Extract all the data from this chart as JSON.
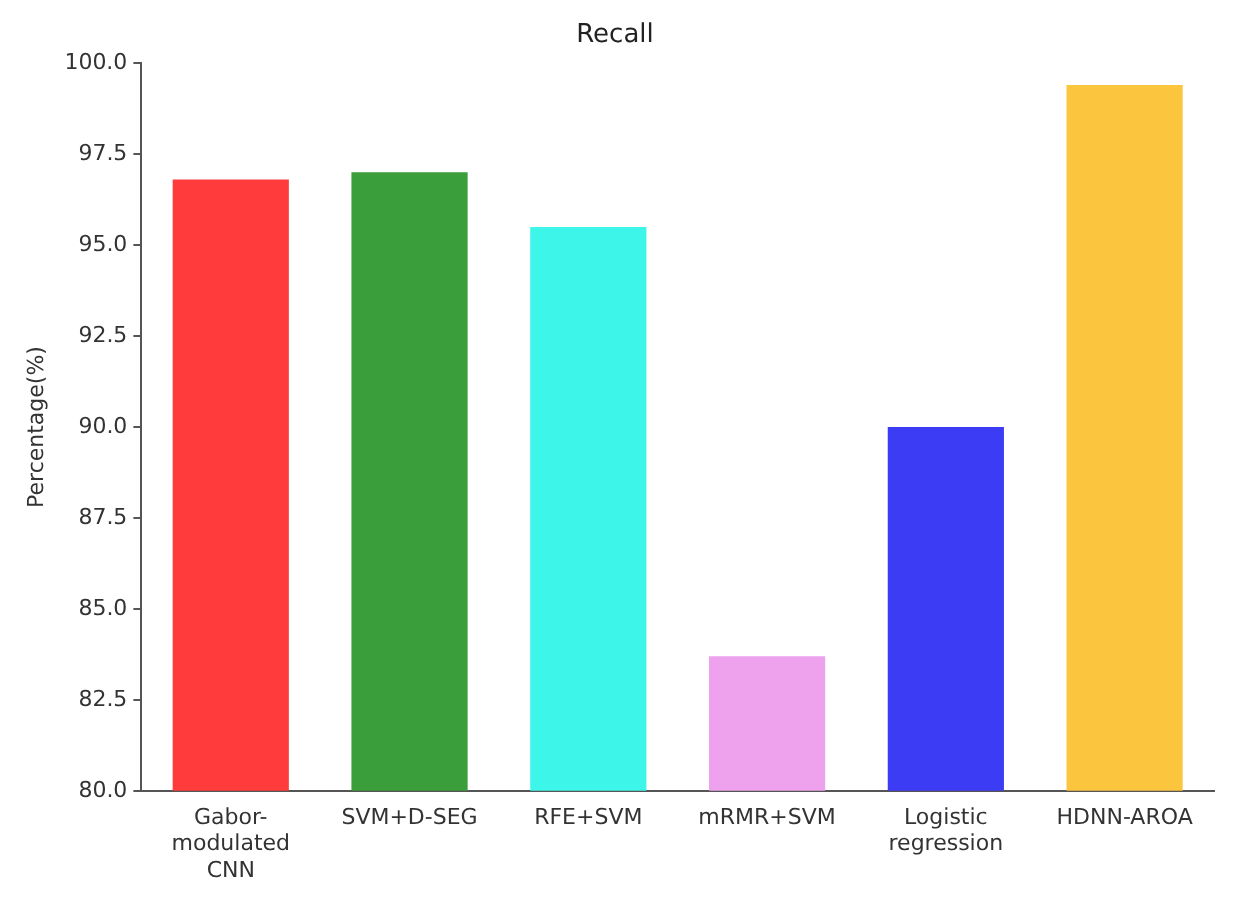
{
  "chart_data": {
    "type": "bar",
    "title": "Recall",
    "ylabel": "Percentage(%)",
    "categories": [
      "Gabor-modulated CNN",
      "SVM+D-SEG",
      "RFE+SVM",
      "mRMR+SVM",
      "Logistic regression",
      "HDNN-AROA"
    ],
    "values": [
      96.8,
      97.0,
      95.5,
      83.7,
      90.0,
      99.4
    ],
    "colors": [
      "#ff3b3b",
      "#3a9e3a",
      "#3ef5ea",
      "#eea2ee",
      "#3c3cf5",
      "#fbc53e"
    ],
    "ylim": [
      80,
      100
    ],
    "yticks": [
      {
        "value": 80,
        "label": "80.0"
      },
      {
        "value": 82.5,
        "label": "82.5"
      },
      {
        "value": 85,
        "label": "85.0"
      },
      {
        "value": 87.5,
        "label": "87.5"
      },
      {
        "value": 90,
        "label": "90.0"
      },
      {
        "value": 92.5,
        "label": "92.5"
      },
      {
        "value": 95,
        "label": "95.0"
      },
      {
        "value": 97.5,
        "label": "97.5"
      },
      {
        "value": 100,
        "label": "100.0"
      }
    ],
    "grid": false,
    "legend": false
  }
}
